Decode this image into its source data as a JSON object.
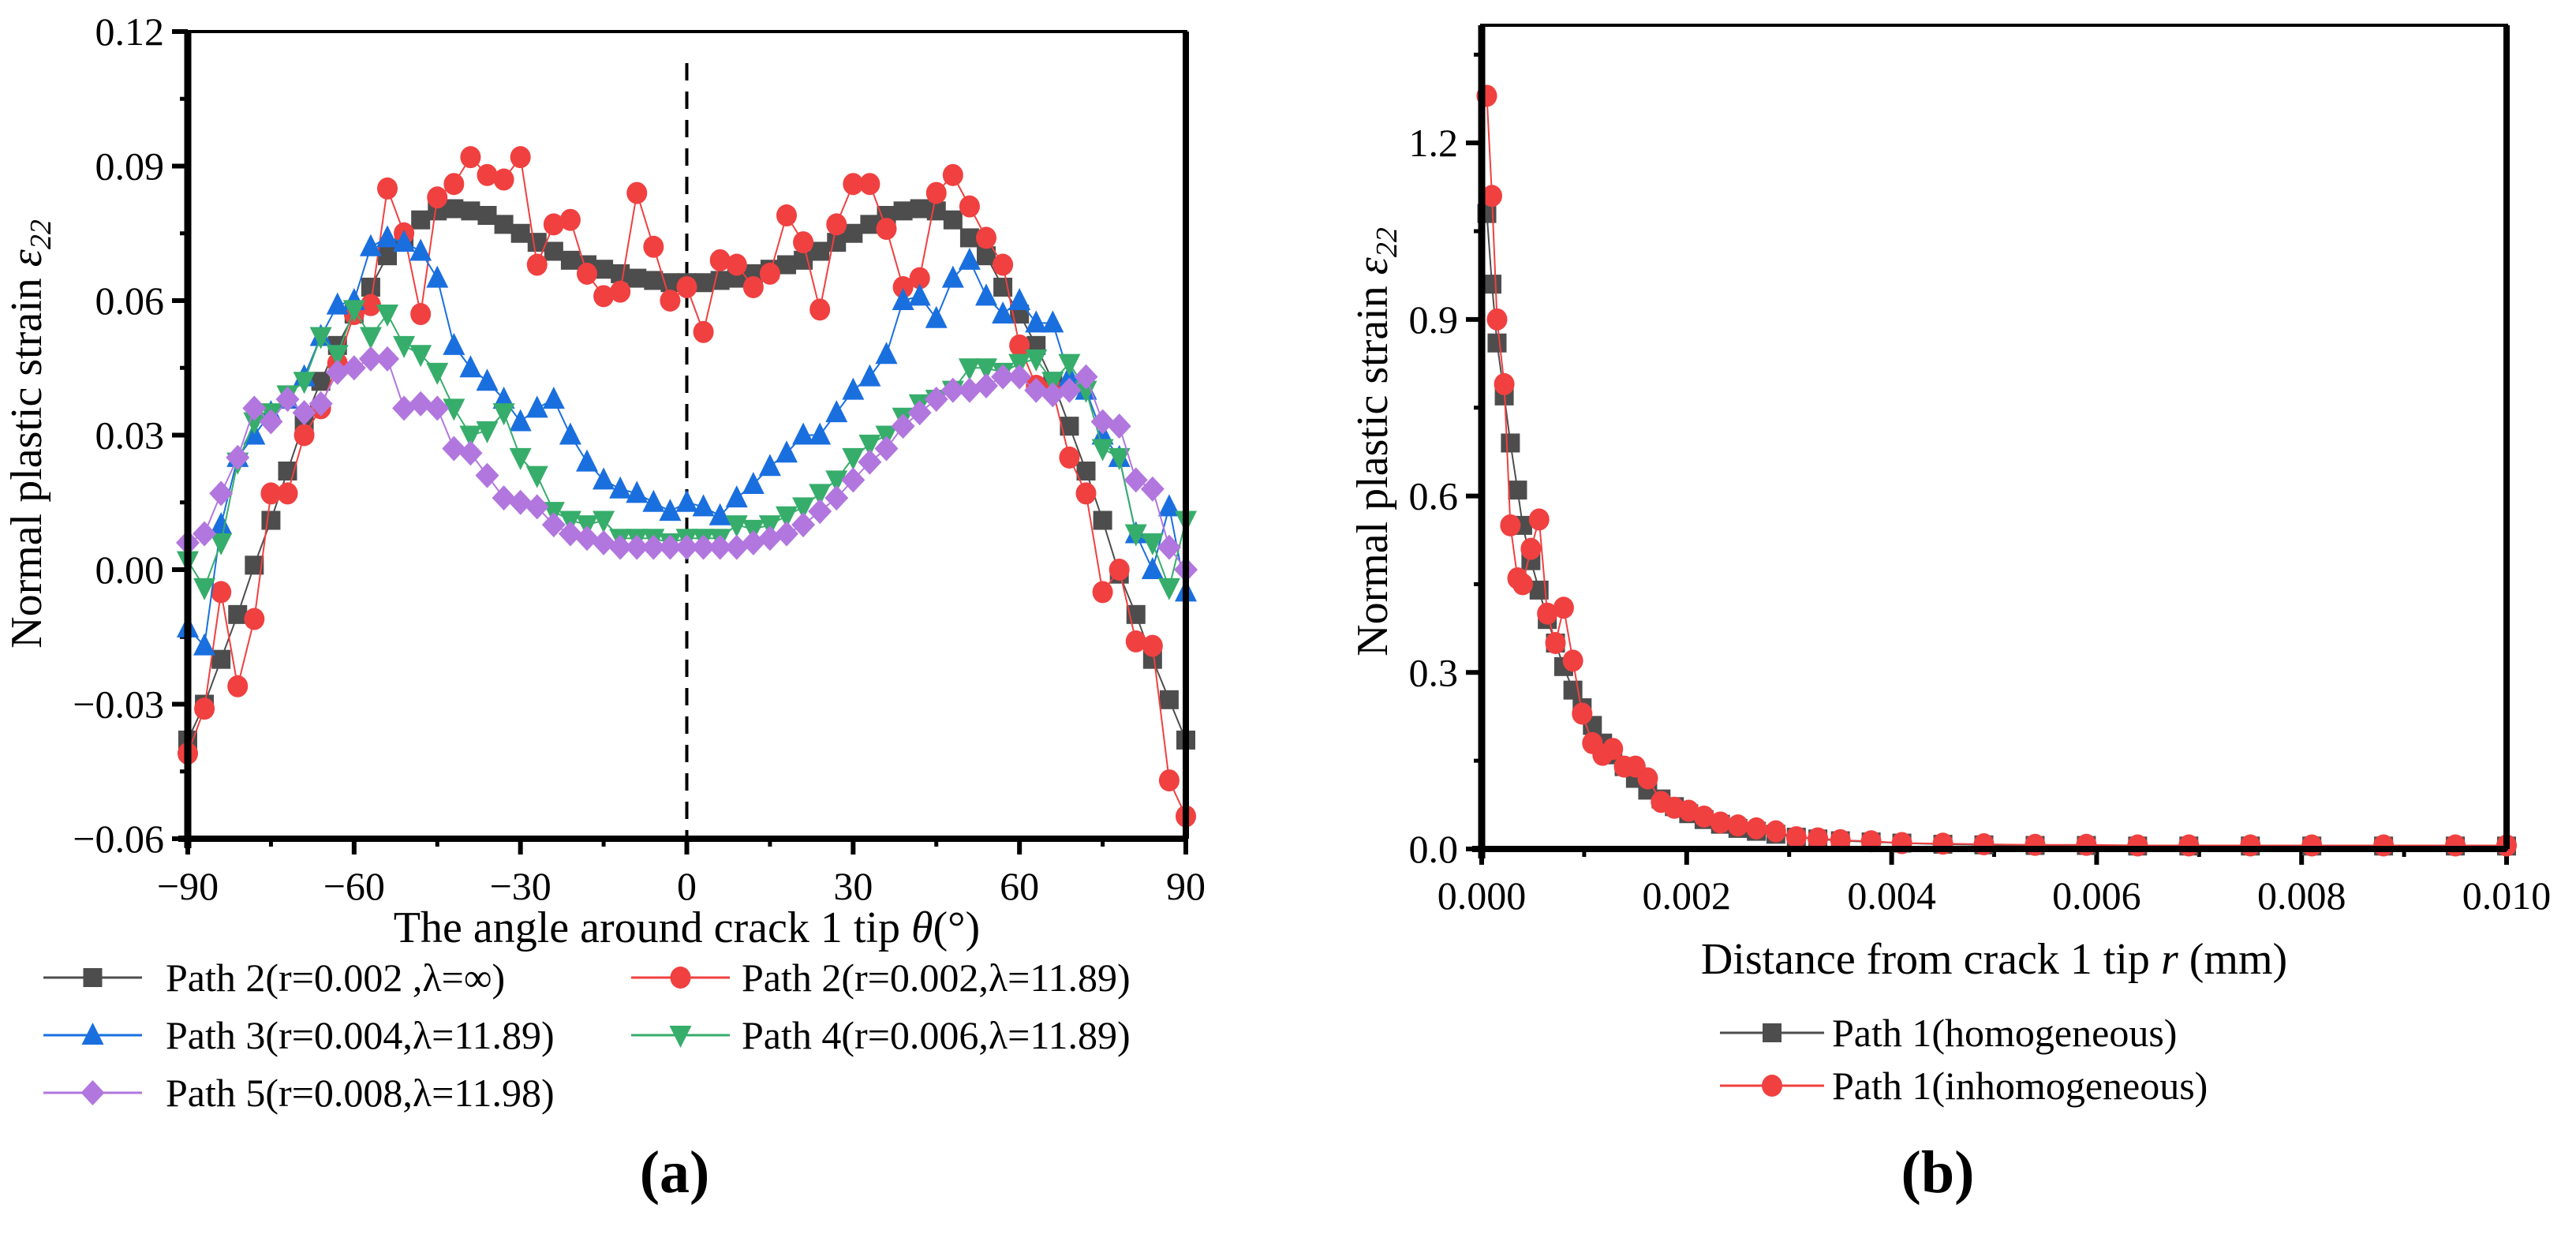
{
  "chart_data": [
    {
      "type": "line",
      "panel_label": "(a)",
      "xlabel": {
        "text": "The angle around crack 1 tip ",
        "symbol": "θ",
        "unit": "(°)"
      },
      "ylabel": {
        "text": "Normal plastic strain ",
        "symbol": "ε",
        "sub": "22"
      },
      "xlim": [
        -90,
        90
      ],
      "ylim": [
        -0.06,
        0.12
      ],
      "xticks": [
        "−90",
        "−60",
        "−30",
        "0",
        "30",
        "60",
        "90"
      ],
      "xtick_values": [
        -90,
        -60,
        -30,
        0,
        30,
        60,
        90
      ],
      "yticks": [
        "−0.06",
        "−0.03",
        "0.00",
        "0.03",
        "0.06",
        "0.09",
        "0.12"
      ],
      "ytick_values": [
        -0.06,
        -0.03,
        0,
        0.03,
        0.06,
        0.09,
        0.12
      ],
      "reference_line": {
        "x": 0,
        "style": "dashed"
      },
      "legend_position": "below",
      "x": [
        -90,
        -87,
        -84,
        -81,
        -78,
        -75,
        -72,
        -69,
        -66,
        -63,
        -60,
        -57,
        -54,
        -51,
        -48,
        -45,
        -42,
        -39,
        -36,
        -33,
        -30,
        -27,
        -24,
        -21,
        -18,
        -15,
        -12,
        -9,
        -6,
        -3,
        0,
        3,
        6,
        9,
        12,
        15,
        18,
        21,
        24,
        27,
        30,
        33,
        36,
        39,
        42,
        45,
        48,
        51,
        54,
        57,
        60,
        63,
        66,
        69,
        72,
        75,
        78,
        81,
        84,
        87,
        90
      ],
      "series": [
        {
          "name": "Path 2(r=0.002 ,λ=∞)",
          "color": "#4d4d4d",
          "marker": "square",
          "values": [
            -0.038,
            -0.03,
            -0.02,
            -0.01,
            0.001,
            0.011,
            0.022,
            0.033,
            0.042,
            0.05,
            0.057,
            0.063,
            0.07,
            0.074,
            0.078,
            0.08,
            0.0805,
            0.08,
            0.079,
            0.077,
            0.075,
            0.073,
            0.071,
            0.069,
            0.068,
            0.067,
            0.066,
            0.065,
            0.0645,
            0.064,
            0.064,
            0.064,
            0.0645,
            0.065,
            0.066,
            0.067,
            0.068,
            0.069,
            0.071,
            0.073,
            0.075,
            0.077,
            0.079,
            0.08,
            0.0805,
            0.08,
            0.078,
            0.074,
            0.07,
            0.063,
            0.057,
            0.05,
            0.042,
            0.032,
            0.022,
            0.011,
            -0.001,
            -0.01,
            -0.02,
            -0.029,
            -0.038
          ]
        },
        {
          "name": "Path 2(r=0.002,λ=11.89)",
          "color": "#f04040",
          "marker": "circle",
          "values": [
            -0.041,
            -0.031,
            -0.005,
            -0.026,
            -0.011,
            0.017,
            0.017,
            0.03,
            0.036,
            0.046,
            0.057,
            0.059,
            0.085,
            0.075,
            0.057,
            0.083,
            0.086,
            0.092,
            0.088,
            0.087,
            0.092,
            0.068,
            0.077,
            0.078,
            0.066,
            0.061,
            0.062,
            0.084,
            0.072,
            0.06,
            0.063,
            0.053,
            0.069,
            0.068,
            0.063,
            0.066,
            0.079,
            0.073,
            0.058,
            0.077,
            0.086,
            0.086,
            0.076,
            0.063,
            0.065,
            0.084,
            0.088,
            0.081,
            0.074,
            0.068,
            0.05,
            0.041,
            0.04,
            0.025,
            0.017,
            -0.005,
            0.0,
            -0.016,
            -0.017,
            -0.047,
            -0.055
          ]
        },
        {
          "name": "Path 3(r=0.004,λ=11.89)",
          "color": "#1a6fdf",
          "marker": "triangle-up",
          "values": [
            -0.013,
            -0.017,
            0.01,
            0.025,
            0.03,
            0.035,
            0.038,
            0.043,
            0.052,
            0.059,
            0.06,
            0.072,
            0.074,
            0.073,
            0.071,
            0.065,
            0.05,
            0.045,
            0.042,
            0.038,
            0.033,
            0.036,
            0.038,
            0.03,
            0.024,
            0.02,
            0.018,
            0.017,
            0.015,
            0.013,
            0.015,
            0.014,
            0.012,
            0.016,
            0.019,
            0.023,
            0.026,
            0.03,
            0.03,
            0.035,
            0.04,
            0.043,
            0.048,
            0.06,
            0.061,
            0.056,
            0.065,
            0.069,
            0.061,
            0.057,
            0.06,
            0.055,
            0.055,
            0.043,
            0.04,
            0.03,
            0.025,
            0.008,
            0.0,
            0.014,
            -0.005
          ]
        },
        {
          "name": "Path 4(r=0.006,λ=11.89)",
          "color": "#37ad6b",
          "marker": "triangle-down",
          "values": [
            0.002,
            -0.004,
            0.006,
            0.024,
            0.033,
            0.035,
            0.039,
            0.042,
            0.052,
            0.048,
            0.058,
            0.052,
            0.057,
            0.05,
            0.048,
            0.044,
            0.036,
            0.03,
            0.031,
            0.035,
            0.025,
            0.021,
            0.013,
            0.011,
            0.01,
            0.011,
            0.007,
            0.007,
            0.007,
            0.006,
            0.007,
            0.007,
            0.007,
            0.01,
            0.009,
            0.01,
            0.012,
            0.014,
            0.017,
            0.02,
            0.025,
            0.028,
            0.03,
            0.034,
            0.037,
            0.038,
            0.04,
            0.045,
            0.045,
            0.044,
            0.046,
            0.047,
            0.042,
            0.046,
            0.04,
            0.027,
            0.025,
            0.008,
            0.006,
            -0.004,
            0.011
          ]
        },
        {
          "name": "Path 5(r=0.008,λ=11.98)",
          "color": "#b177de",
          "marker": "diamond",
          "values": [
            0.006,
            0.008,
            0.017,
            0.025,
            0.036,
            0.033,
            0.038,
            0.035,
            0.037,
            0.044,
            0.045,
            0.047,
            0.047,
            0.036,
            0.037,
            0.036,
            0.027,
            0.026,
            0.021,
            0.016,
            0.015,
            0.014,
            0.01,
            0.008,
            0.007,
            0.006,
            0.005,
            0.005,
            0.005,
            0.005,
            0.005,
            0.005,
            0.005,
            0.005,
            0.006,
            0.007,
            0.008,
            0.01,
            0.013,
            0.016,
            0.02,
            0.024,
            0.027,
            0.032,
            0.035,
            0.038,
            0.04,
            0.04,
            0.041,
            0.043,
            0.043,
            0.04,
            0.039,
            0.04,
            0.043,
            0.033,
            0.032,
            0.02,
            0.018,
            0.005,
            0.0
          ]
        }
      ]
    },
    {
      "type": "line",
      "panel_label": "(b)",
      "xlabel": {
        "text": "Distance from crack 1 tip ",
        "symbol": "r",
        "unit": " (mm)"
      },
      "ylabel": {
        "text": "Normal plastic strain ",
        "symbol": "ε",
        "sub": "22"
      },
      "xlim": [
        0,
        0.01
      ],
      "ylim": [
        0,
        1.4
      ],
      "xticks": [
        "0.000",
        "0.002",
        "0.004",
        "0.006",
        "0.008",
        "0.010"
      ],
      "xtick_values": [
        0,
        0.002,
        0.004,
        0.006,
        0.008,
        0.01
      ],
      "yticks": [
        "0.0",
        "0.3",
        "0.6",
        "0.9",
        "1.2"
      ],
      "ytick_values": [
        0,
        0.3,
        0.6,
        0.9,
        1.2
      ],
      "legend_position": "below",
      "x": [
        5e-05,
        0.0001,
        0.00015,
        0.00022,
        0.00028,
        0.00035,
        0.0004,
        0.00048,
        0.00056,
        0.00064,
        0.00072,
        0.0008,
        0.00089,
        0.00098,
        0.00108,
        0.00118,
        0.00128,
        0.00139,
        0.0015,
        0.00162,
        0.00175,
        0.00188,
        0.00202,
        0.00217,
        0.00233,
        0.0025,
        0.00268,
        0.00287,
        0.00307,
        0.00328,
        0.0035,
        0.0038,
        0.0041,
        0.0045,
        0.0049,
        0.0054,
        0.0059,
        0.0064,
        0.0069,
        0.0075,
        0.0081,
        0.0088,
        0.0095,
        0.01
      ],
      "series": [
        {
          "name": "Path 1(homogeneous)",
          "color": "#4d4d4d",
          "marker": "square",
          "values": [
            1.08,
            0.96,
            0.86,
            0.77,
            0.69,
            0.61,
            0.55,
            0.49,
            0.44,
            0.39,
            0.35,
            0.31,
            0.27,
            0.24,
            0.21,
            0.18,
            0.16,
            0.14,
            0.12,
            0.1,
            0.085,
            0.072,
            0.06,
            0.05,
            0.042,
            0.035,
            0.03,
            0.025,
            0.02,
            0.017,
            0.014,
            0.012,
            0.01,
            0.008,
            0.007,
            0.006,
            0.006,
            0.005,
            0.005,
            0.005,
            0.005,
            0.005,
            0.005,
            0.005
          ]
        },
        {
          "name": "Path 1(inhomogeneous)",
          "color": "#f04040",
          "marker": "circle",
          "values": [
            1.28,
            1.11,
            0.9,
            0.79,
            0.55,
            0.46,
            0.45,
            0.51,
            0.56,
            0.4,
            0.35,
            0.41,
            0.32,
            0.23,
            0.18,
            0.16,
            0.17,
            0.14,
            0.14,
            0.12,
            0.08,
            0.07,
            0.065,
            0.055,
            0.045,
            0.04,
            0.035,
            0.03,
            0.02,
            0.018,
            0.015,
            0.013,
            0.01,
            0.009,
            0.008,
            0.007,
            0.007,
            0.006,
            0.006,
            0.006,
            0.006,
            0.006,
            0.006,
            0.006
          ]
        }
      ]
    }
  ]
}
